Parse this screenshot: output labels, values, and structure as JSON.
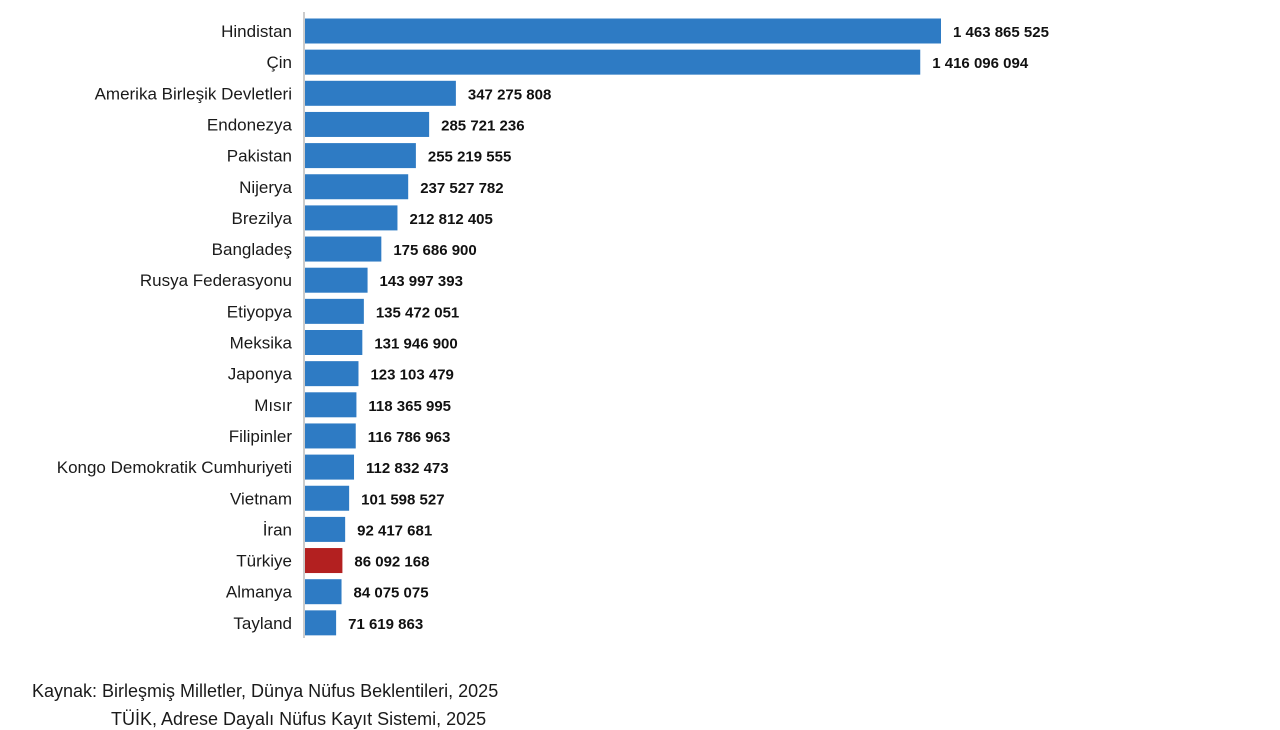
{
  "chart_data": {
    "type": "bar",
    "orientation": "horizontal",
    "categories": [
      "Hindistan",
      "Çin",
      "Amerika Birleşik Devletleri",
      "Endonezya",
      "Pakistan",
      "Nijerya",
      "Brezilya",
      "Bangladeş",
      "Rusya Federasyonu",
      "Etiyopya",
      "Meksika",
      "Japonya",
      "Mısır",
      "Filipinler",
      "Kongo Demokratik Cumhuriyeti",
      "Vietnam",
      "İran",
      "Türkiye",
      "Almanya",
      "Tayland"
    ],
    "values": [
      1463865525,
      1416096094,
      347275808,
      285721236,
      255219555,
      237527782,
      212812405,
      175686900,
      143997393,
      135472051,
      131946900,
      123103479,
      118365995,
      116786963,
      112832473,
      101598527,
      92417681,
      86092168,
      84075075,
      71619863
    ],
    "value_labels": [
      "1 463 865 525",
      "1 416 096 094",
      "347 275 808",
      "285 721 236",
      "255 219 555",
      "237 527 782",
      "212 812 405",
      "175 686 900",
      "143 997 393",
      "135 472 051",
      "131 946 900",
      "123 103 479",
      "118 365 995",
      "116 786 963",
      "112 832 473",
      "101 598 527",
      "92 417 681",
      "86 092 168",
      "84 075 075",
      "71 619 863"
    ],
    "highlight": "Türkiye",
    "xlim": [
      0,
      1463865525
    ],
    "grid": false,
    "legend": "none",
    "colors": {
      "bar": "#2e7bc4",
      "highlight": "#b32020"
    }
  },
  "source": {
    "line1": "Kaynak: Birleşmiş Milletler, Dünya Nüfus Beklentileri, 2025",
    "line2": "TÜİK, Adrese Dayalı Nüfus Kayıt Sistemi, 2025"
  }
}
